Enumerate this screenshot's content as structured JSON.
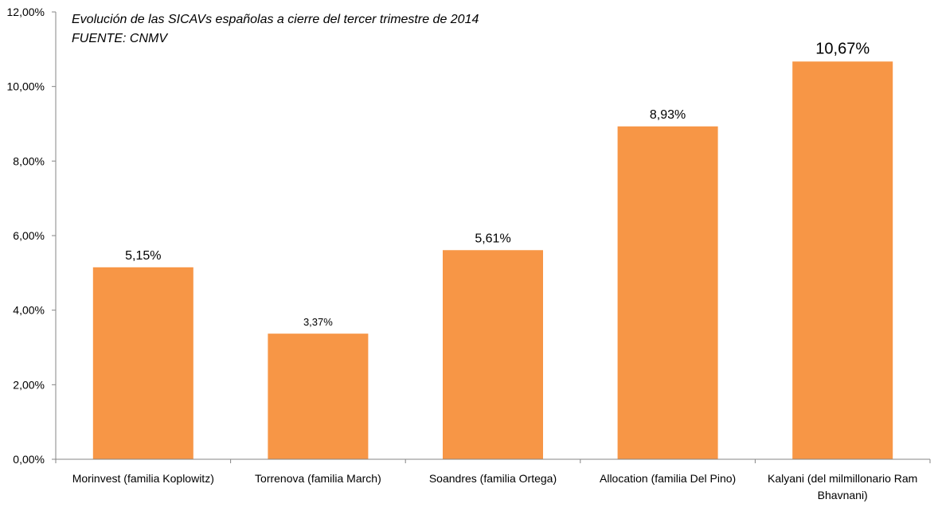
{
  "chart_data": {
    "type": "bar",
    "title": "Evolución de las SICAVs españolas a cierre del tercer trimestre de 2014",
    "subtitle": "FUENTE: CNMV",
    "xlabel": "",
    "ylabel": "",
    "ylim": [
      0,
      12
    ],
    "y_ticks": [
      0,
      2,
      4,
      6,
      8,
      10,
      12
    ],
    "y_tick_labels": [
      "0,00%",
      "2,00%",
      "4,00%",
      "6,00%",
      "8,00%",
      "10,00%",
      "12,00%"
    ],
    "grid": false,
    "legend": "none",
    "categories": [
      "Morinvest (familia Koplowitz)",
      "Torrenova (familia March)",
      "Soandres (familia Ortega)",
      "Allocation (familia Del Pino)",
      "Kalyani (del milmillonario Ram Bhavnani)"
    ],
    "category_label_lines": [
      [
        "Morinvest (familia Koplowitz)"
      ],
      [
        "Torrenova (familia March)"
      ],
      [
        "Soandres (familia Ortega)"
      ],
      [
        "Allocation (familia Del Pino)"
      ],
      [
        "Kalyani (del milmillonario Ram",
        "Bhavnani)"
      ]
    ],
    "values": [
      5.15,
      3.37,
      5.61,
      8.93,
      10.67
    ],
    "data_labels": [
      "5,15%",
      "3,37%",
      "5,61%",
      "8,93%",
      "10,67%"
    ],
    "bar_color": "#F79646",
    "axis_color": "#868686"
  }
}
